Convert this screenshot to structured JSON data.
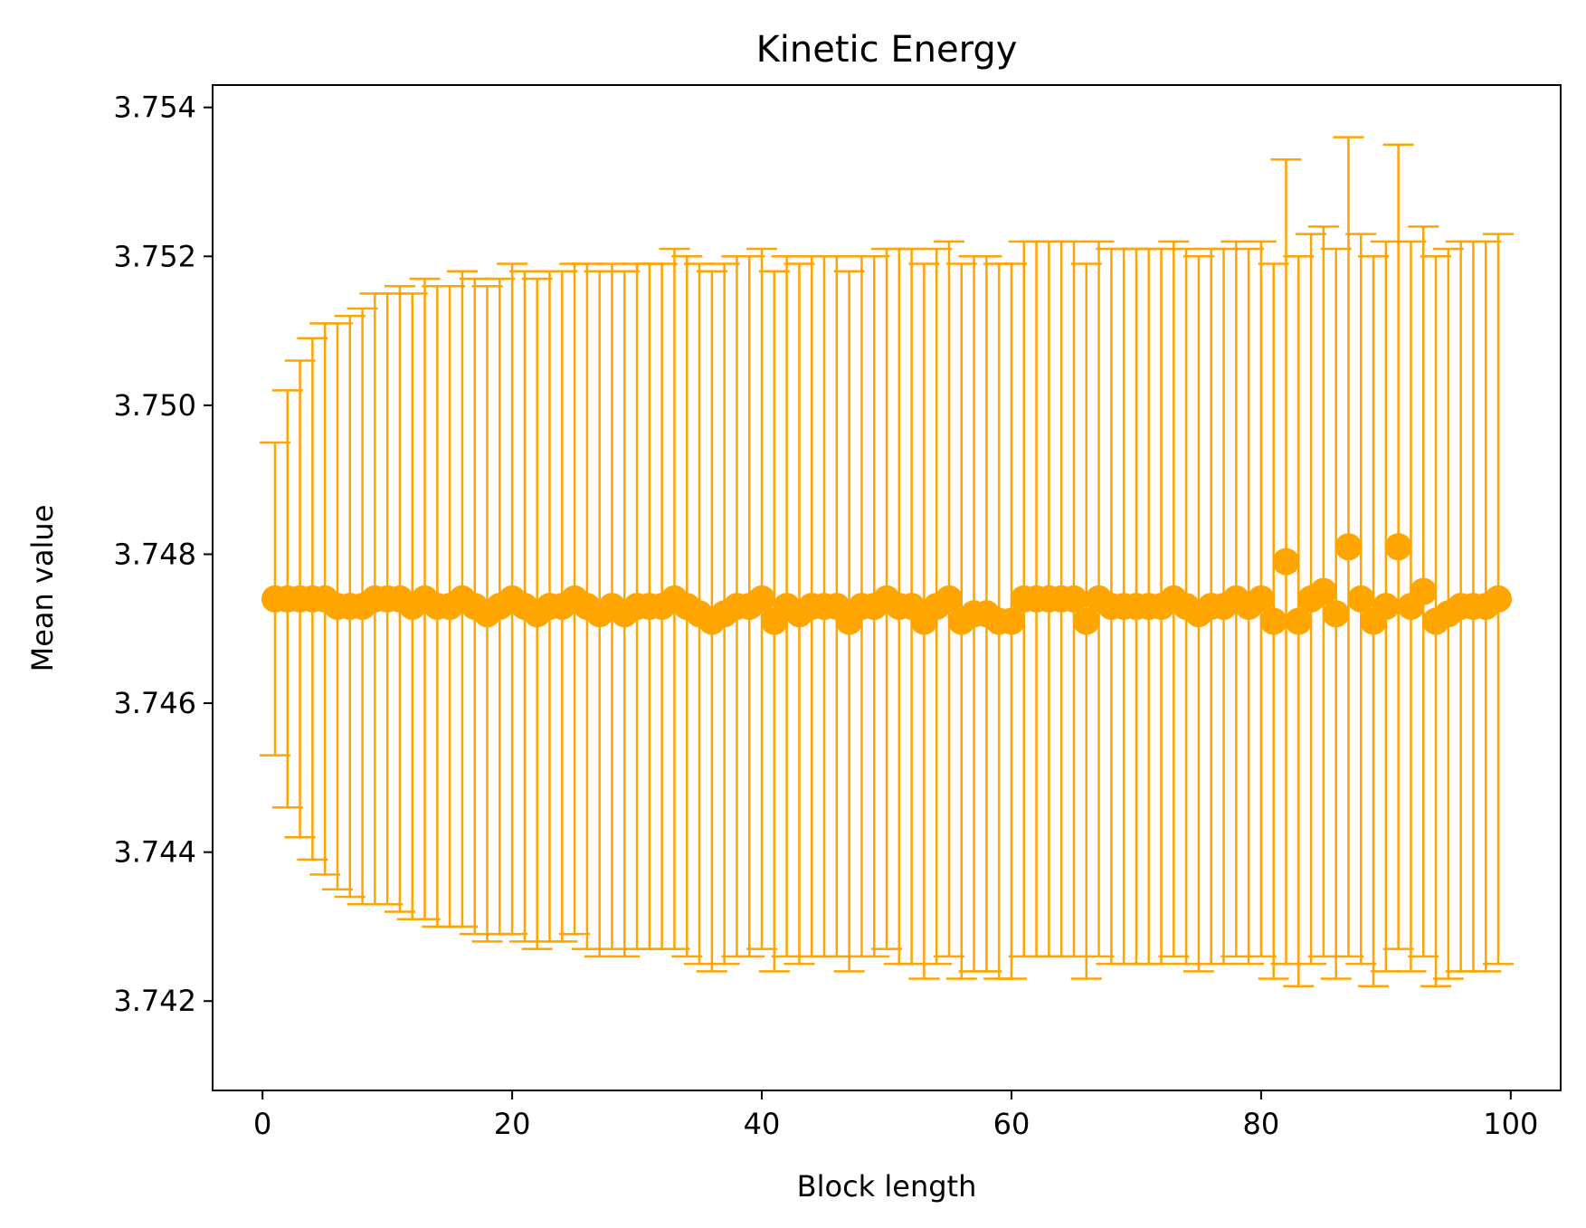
{
  "chart_data": {
    "type": "scatter",
    "title": "Kinetic Energy",
    "xlabel": "Block length",
    "ylabel": "Mean value",
    "xlim": [
      -4,
      104
    ],
    "ylim": [
      3.7408,
      3.7543
    ],
    "xticks": [
      0,
      20,
      40,
      60,
      80,
      100
    ],
    "xtick_labels": [
      "0",
      "20",
      "40",
      "60",
      "80",
      "100"
    ],
    "yticks": [
      3.742,
      3.744,
      3.746,
      3.748,
      3.75,
      3.752,
      3.754
    ],
    "ytick_labels": [
      "3.742",
      "3.744",
      "3.746",
      "3.748",
      "3.750",
      "3.752",
      "3.754"
    ],
    "grid": false,
    "color": "#ffa500",
    "series": [
      {
        "x": [
          1,
          2,
          3,
          4,
          5,
          6,
          7,
          8,
          9,
          10,
          11,
          12,
          13,
          14,
          15,
          16,
          17,
          18,
          19,
          20,
          21,
          22,
          23,
          24,
          25,
          26,
          27,
          28,
          29,
          30,
          31,
          32,
          33,
          34,
          35,
          36,
          37,
          38,
          39,
          40,
          41,
          42,
          43,
          44,
          45,
          46,
          47,
          48,
          49,
          50,
          51,
          52,
          53,
          54,
          55,
          56,
          57,
          58,
          59,
          60,
          61,
          62,
          63,
          64,
          65,
          66,
          67,
          68,
          69,
          70,
          71,
          72,
          73,
          74,
          75,
          76,
          77,
          78,
          79,
          80,
          81,
          82,
          83,
          84,
          85,
          86,
          87,
          88,
          89,
          90,
          91,
          92,
          93,
          94,
          95,
          96,
          97,
          98,
          99
        ],
        "y": [
          3.7474,
          3.7474,
          3.7474,
          3.7474,
          3.7474,
          3.7473,
          3.7473,
          3.7473,
          3.7474,
          3.7474,
          3.7474,
          3.7473,
          3.7474,
          3.7473,
          3.7473,
          3.7474,
          3.7473,
          3.7472,
          3.7473,
          3.7474,
          3.7473,
          3.7472,
          3.7473,
          3.7473,
          3.7474,
          3.7473,
          3.7472,
          3.7473,
          3.7472,
          3.7473,
          3.7473,
          3.7473,
          3.7474,
          3.7473,
          3.7472,
          3.7471,
          3.7472,
          3.7473,
          3.7473,
          3.7474,
          3.7471,
          3.7473,
          3.7472,
          3.7473,
          3.7473,
          3.7473,
          3.7471,
          3.7473,
          3.7473,
          3.7474,
          3.7473,
          3.7473,
          3.7471,
          3.7473,
          3.7474,
          3.7471,
          3.7472,
          3.7472,
          3.7471,
          3.7471,
          3.7474,
          3.7474,
          3.7474,
          3.7474,
          3.7474,
          3.7471,
          3.7474,
          3.7473,
          3.7473,
          3.7473,
          3.7473,
          3.7473,
          3.7474,
          3.7473,
          3.7472,
          3.7473,
          3.7473,
          3.7474,
          3.7473,
          3.7474,
          3.7471,
          3.7479,
          3.7471,
          3.7474,
          3.7475,
          3.7472,
          3.7481,
          3.7474,
          3.7471,
          3.7473,
          3.7481,
          3.7473,
          3.7475,
          3.7471,
          3.7472,
          3.7473,
          3.7473,
          3.7473,
          3.7474
        ],
        "yerr": [
          0.0021,
          0.0028,
          0.0032,
          0.0035,
          0.0037,
          0.0038,
          0.0039,
          0.004,
          0.0041,
          0.0041,
          0.0042,
          0.0042,
          0.0043,
          0.0043,
          0.0043,
          0.0044,
          0.0044,
          0.0044,
          0.0044,
          0.0045,
          0.0045,
          0.0045,
          0.0045,
          0.0045,
          0.0045,
          0.0046,
          0.0046,
          0.0046,
          0.0046,
          0.0046,
          0.0046,
          0.0046,
          0.0047,
          0.0047,
          0.0047,
          0.0047,
          0.0047,
          0.0047,
          0.0047,
          0.0047,
          0.0047,
          0.0047,
          0.0047,
          0.0047,
          0.0047,
          0.0047,
          0.0047,
          0.0047,
          0.0047,
          0.0047,
          0.0048,
          0.0048,
          0.0048,
          0.0048,
          0.0048,
          0.0048,
          0.0048,
          0.0048,
          0.0048,
          0.0048,
          0.0048,
          0.0048,
          0.0048,
          0.0048,
          0.0048,
          0.0048,
          0.0048,
          0.0048,
          0.0048,
          0.0048,
          0.0048,
          0.0048,
          0.0048,
          0.0048,
          0.0048,
          0.0048,
          0.0048,
          0.0048,
          0.0048,
          0.0048,
          0.0048,
          0.0054,
          0.0049,
          0.0049,
          0.0049,
          0.0049,
          0.0055,
          0.0049,
          0.0049,
          0.0049,
          0.0054,
          0.0049,
          0.0049,
          0.0049,
          0.0049,
          0.0049,
          0.0049,
          0.0049,
          0.0049
        ]
      }
    ]
  }
}
